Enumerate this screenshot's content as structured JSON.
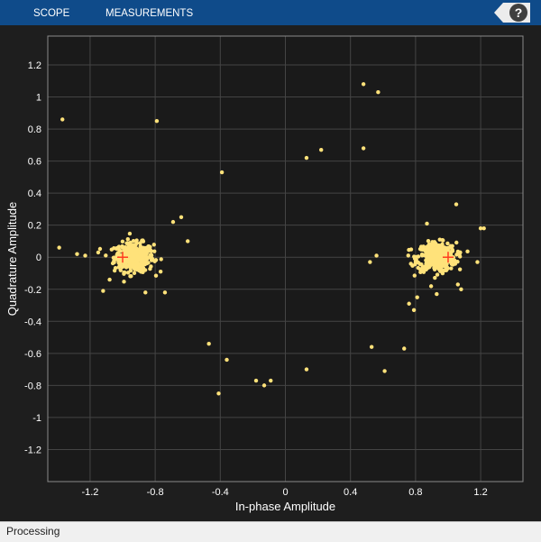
{
  "toolstrip": {
    "tabs": [
      "SCOPE",
      "MEASUREMENTS"
    ],
    "help_label": "?"
  },
  "status": {
    "text": "Processing"
  },
  "colors": {
    "toolstrip": "#0f4b8a",
    "plot_bg": "#1a1a1a",
    "points": "#ffe27a",
    "reference": "#ff3b1f",
    "grid": "#444444",
    "text": "#ffffff"
  },
  "chart_data": {
    "type": "scatter",
    "xlabel": "In-phase Amplitude",
    "ylabel": "Quadrature Amplitude",
    "xlim": [
      -1.46,
      1.46
    ],
    "ylim": [
      -1.4,
      1.38
    ],
    "xticks": [
      -1.2,
      -0.8,
      -0.4,
      0,
      0.4,
      0.8,
      1.2
    ],
    "xtick_labels": [
      "-1.2",
      "-0.8",
      "-0.4",
      "0",
      "0.4",
      "0.8",
      "1.2"
    ],
    "yticks": [
      1.2,
      1,
      0.8,
      0.6,
      0.4,
      0.2,
      0,
      -0.2,
      -0.4,
      -0.6,
      -0.8,
      -1,
      -1.2
    ],
    "ytick_labels": [
      "1.2",
      "1",
      "0.8",
      "0.6",
      "0.4",
      "0.2",
      "0",
      "-0.2",
      "-0.4",
      "-0.6",
      "-0.8",
      "-1",
      "-1.2"
    ],
    "grid": true,
    "reference_points": [
      [
        -1,
        0
      ],
      [
        1,
        0
      ]
    ],
    "clusters": [
      {
        "center": [
          -0.93,
          0.0
        ],
        "count": 380,
        "spread": 0.06
      },
      {
        "center": [
          0.93,
          0.0
        ],
        "count": 380,
        "spread": 0.06
      }
    ],
    "outliers": [
      [
        -1.37,
        0.86
      ],
      [
        -0.79,
        0.85
      ],
      [
        -0.39,
        0.53
      ],
      [
        0.13,
        0.62
      ],
      [
        0.22,
        0.67
      ],
      [
        0.48,
        1.08
      ],
      [
        0.57,
        1.03
      ],
      [
        0.48,
        0.68
      ],
      [
        -1.39,
        0.06
      ],
      [
        -1.28,
        0.02
      ],
      [
        -1.23,
        0.01
      ],
      [
        -0.64,
        0.25
      ],
      [
        -0.69,
        0.22
      ],
      [
        -0.6,
        0.1
      ],
      [
        -0.47,
        -0.54
      ],
      [
        -0.36,
        -0.64
      ],
      [
        -0.41,
        -0.85
      ],
      [
        -0.18,
        -0.77
      ],
      [
        -0.13,
        -0.8
      ],
      [
        -0.09,
        -0.77
      ],
      [
        0.13,
        -0.7
      ],
      [
        0.53,
        -0.56
      ],
      [
        0.61,
        -0.71
      ],
      [
        0.73,
        -0.57
      ],
      [
        1.05,
        0.33
      ],
      [
        1.2,
        0.18
      ],
      [
        1.22,
        0.18
      ],
      [
        1.18,
        -0.03
      ],
      [
        0.52,
        -0.03
      ],
      [
        0.56,
        0.01
      ],
      [
        0.79,
        -0.33
      ],
      [
        0.76,
        -0.29
      ],
      [
        0.81,
        -0.25
      ],
      [
        0.87,
        0.21
      ],
      [
        0.93,
        -0.23
      ],
      [
        1.08,
        -0.2
      ],
      [
        1.06,
        -0.17
      ],
      [
        -1.12,
        -0.21
      ],
      [
        -1.08,
        -0.14
      ],
      [
        -0.86,
        -0.22
      ],
      [
        -0.74,
        -0.22
      ],
      [
        -1.15,
        0.03
      ]
    ]
  }
}
